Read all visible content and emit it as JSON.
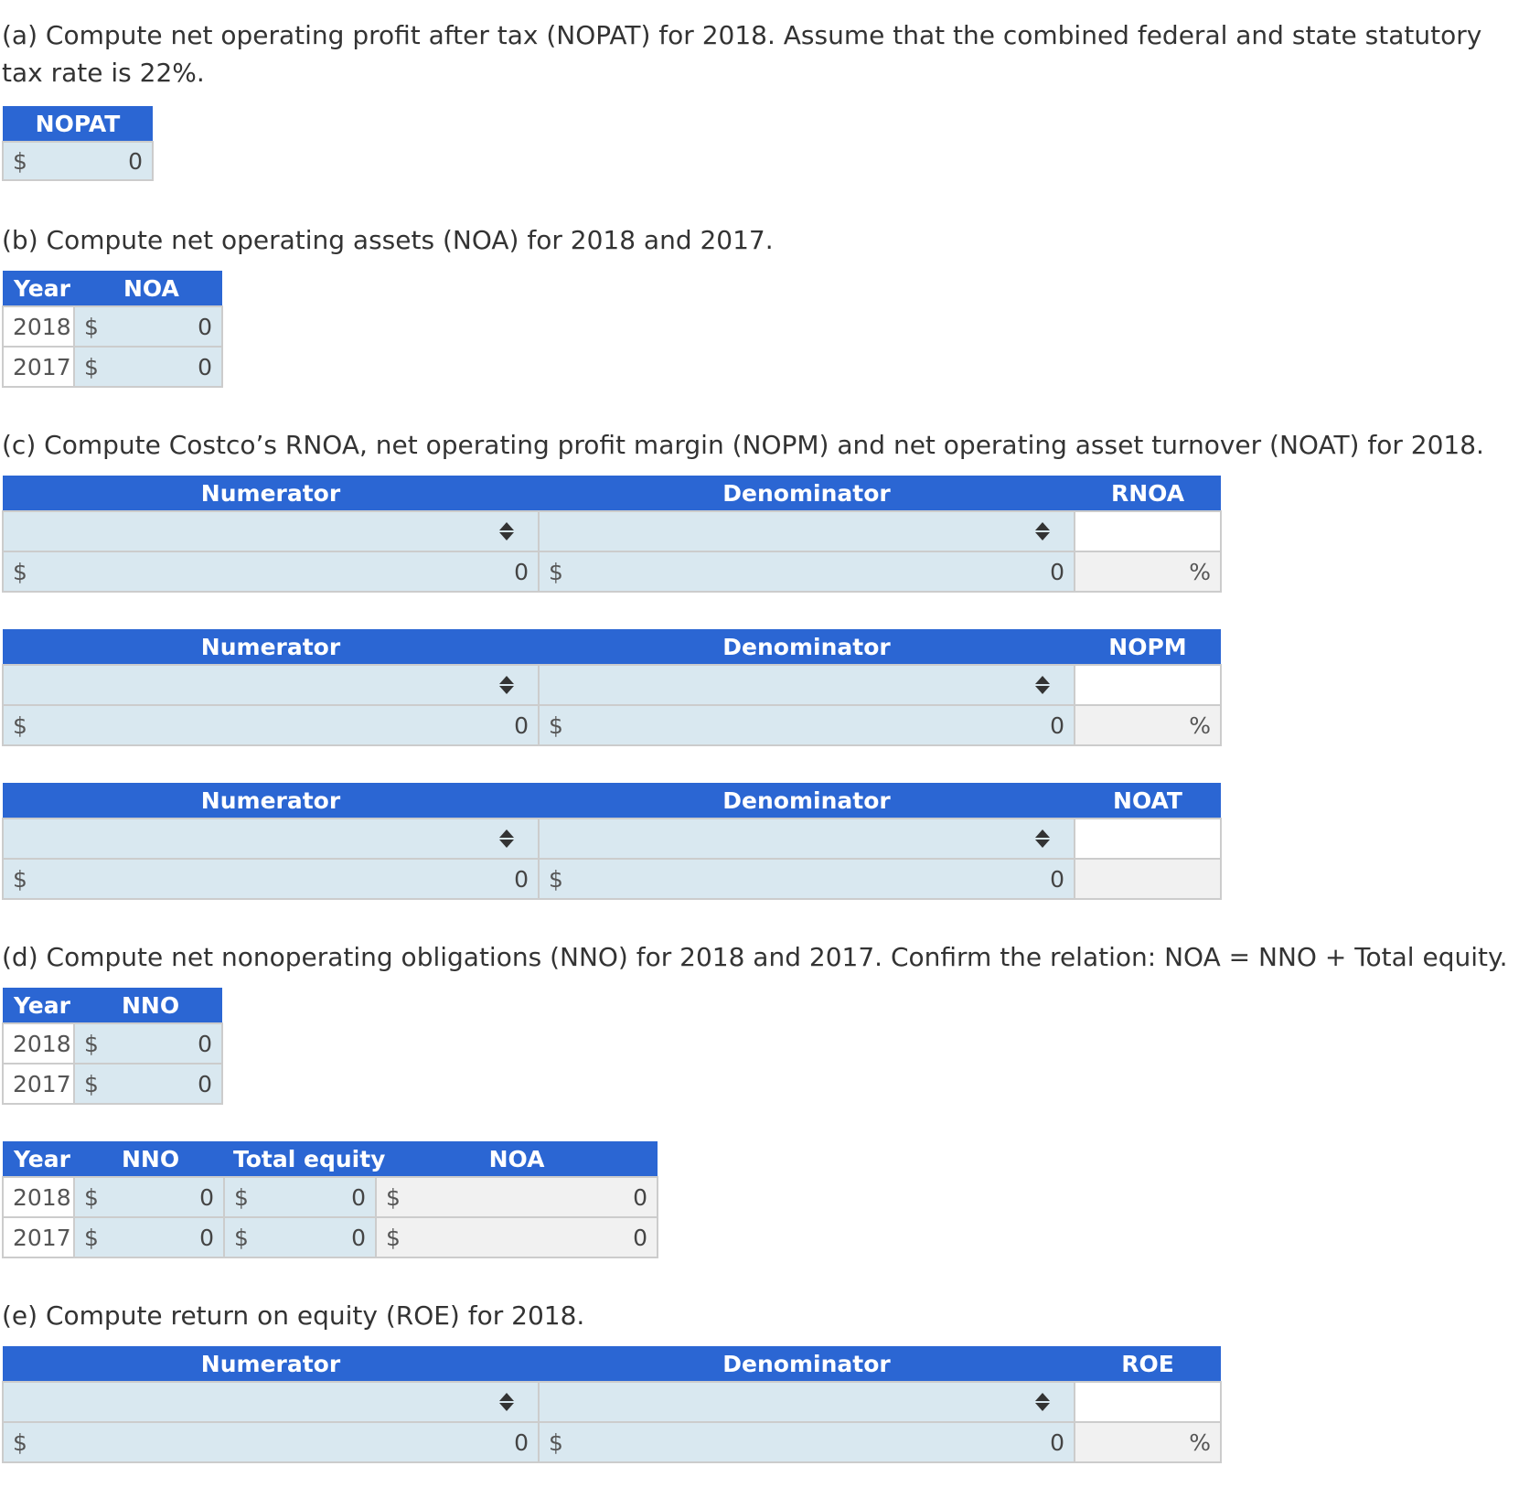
{
  "part_a": {
    "question": "(a) Compute net operating profit after tax (NOPAT) for 2018. Assume that the combined federal and state statutory tax rate is 22%.",
    "header": "NOPAT",
    "currency": "$",
    "value": "0"
  },
  "part_b": {
    "question": "(b) Compute net operating assets (NOA) for 2018 and 2017.",
    "headers": [
      "Year",
      "NOA"
    ],
    "rows": [
      {
        "year": "2018",
        "currency": "$",
        "value": "0"
      },
      {
        "year": "2017",
        "currency": "$",
        "value": "0"
      }
    ]
  },
  "part_c": {
    "question": "(c) Compute Costco’s RNOA, net operating profit margin (NOPM) and net operating asset turnover (NOAT) for 2018.",
    "tables": [
      {
        "numerator": "Numerator",
        "denominator": "Denominator",
        "result": "RNOA",
        "num_currency": "$",
        "num_value": "0",
        "den_currency": "$",
        "den_value": "0",
        "unit": "%"
      },
      {
        "numerator": "Numerator",
        "denominator": "Denominator",
        "result": "NOPM",
        "num_currency": "$",
        "num_value": "0",
        "den_currency": "$",
        "den_value": "0",
        "unit": "%"
      },
      {
        "numerator": "Numerator",
        "denominator": "Denominator",
        "result": "NOAT",
        "num_currency": "$",
        "num_value": "0",
        "den_currency": "$",
        "den_value": "0",
        "unit": ""
      }
    ]
  },
  "part_d": {
    "question": "(d) Compute net nonoperating obligations (NNO) for 2018 and 2017. Confirm the relation: NOA = NNO + Total equity.",
    "table1": {
      "headers": [
        "Year",
        "NNO"
      ],
      "rows": [
        {
          "year": "2018",
          "currency": "$",
          "value": "0"
        },
        {
          "year": "2017",
          "currency": "$",
          "value": "0"
        }
      ]
    },
    "table2": {
      "headers": [
        "Year",
        "NNO",
        "Total equity",
        "NOA"
      ],
      "rows": [
        {
          "year": "2018",
          "nno_currency": "$",
          "nno": "0",
          "te_currency": "$",
          "te": "0",
          "noa_currency": "$",
          "noa": "0"
        },
        {
          "year": "2017",
          "nno_currency": "$",
          "nno": "0",
          "te_currency": "$",
          "te": "0",
          "noa_currency": "$",
          "noa": "0"
        }
      ]
    }
  },
  "part_e": {
    "question": "(e) Compute return on equity (ROE) for 2018.",
    "table": {
      "numerator": "Numerator",
      "denominator": "Denominator",
      "result": "ROE",
      "num_currency": "$",
      "num_value": "0",
      "den_currency": "$",
      "den_value": "0",
      "unit": "%"
    }
  }
}
